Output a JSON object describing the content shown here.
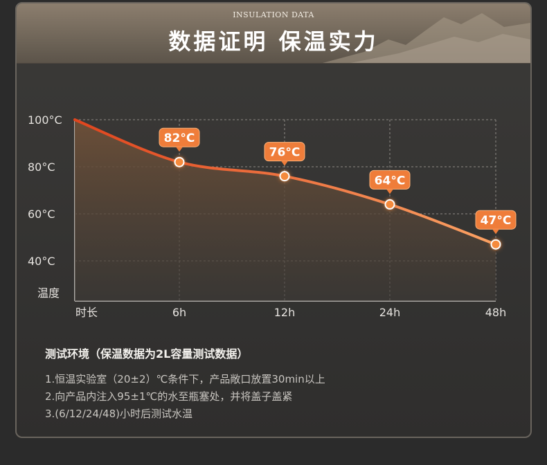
{
  "header": {
    "subtitle_en": "INSULATION DATA",
    "title": "数据证明 保温实力"
  },
  "chart_data": {
    "type": "area",
    "y_ticks": [
      "100°C",
      "80°C",
      "60°C",
      "40°C"
    ],
    "y_tick_values": [
      100,
      80,
      60,
      40
    ],
    "ylabel": "温度",
    "xlabel": "时长",
    "categories": [
      "6h",
      "12h",
      "24h",
      "48h"
    ],
    "points": [
      {
        "x": "0h",
        "y": 100,
        "label": ""
      },
      {
        "x": "6h",
        "y": 82,
        "label": "82°C"
      },
      {
        "x": "12h",
        "y": 76,
        "label": "76°C"
      },
      {
        "x": "24h",
        "y": 64,
        "label": "64°C"
      },
      {
        "x": "48h",
        "y": 47,
        "label": "47°C"
      }
    ],
    "ylim": [
      30,
      100
    ],
    "grid": true,
    "colors": {
      "line": "#f07a32",
      "marker": "#f58a3c",
      "label_bg": "#ef7d3a",
      "fill": "#6b4f3a"
    }
  },
  "notes": {
    "heading": "测试环境（保温数据为2L容量测试数据）",
    "items": [
      "1.恒温实验室（20±2）℃条件下，产品敞口放置30min以上",
      "2.向产品内注入95±1℃的水至瓶塞处，并将盖子盖紧",
      "3.(6/12/24/48)小时后测试水温"
    ]
  }
}
